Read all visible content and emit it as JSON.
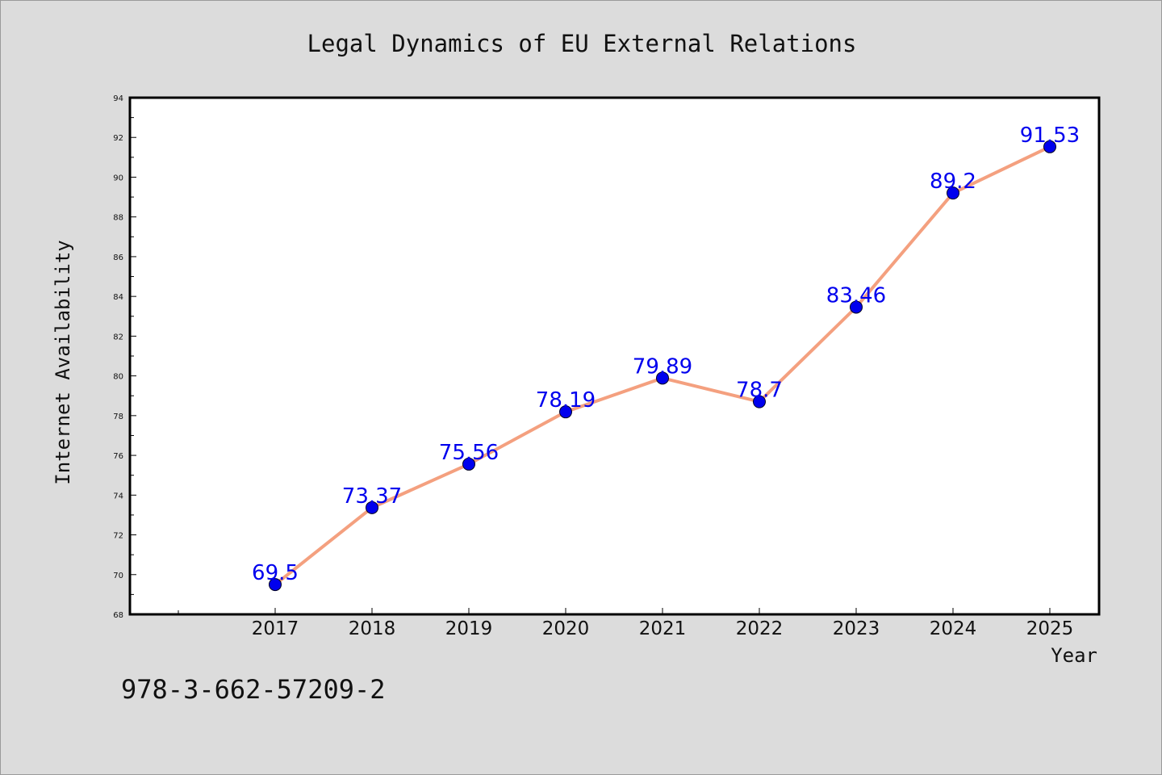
{
  "chart_data": {
    "type": "line",
    "title": "Legal Dynamics of EU External Relations",
    "xlabel": "Year",
    "ylabel": "Internet Availability",
    "categories": [
      "2017",
      "2018",
      "2019",
      "2020",
      "2021",
      "2022",
      "2023",
      "2024",
      "2025"
    ],
    "series": [
      {
        "values": [
          69.5,
          73.37,
          75.56,
          78.19,
          79.89,
          78.7,
          83.46,
          89.2,
          91.53
        ],
        "labels": [
          "69.5",
          "73.37",
          "75.56",
          "78.19",
          "79.89",
          "78.7",
          "83.46",
          "89.2",
          "91.53"
        ],
        "line_color": "#f4a07f",
        "marker_color": "#0000ee"
      }
    ],
    "ylim": [
      68,
      94
    ],
    "yticks": [
      "68",
      "70",
      "72",
      "74",
      "76",
      "78",
      "80",
      "82",
      "84",
      "86",
      "88",
      "90",
      "92",
      "94"
    ],
    "grid": false,
    "legend": "none"
  },
  "footer": {
    "isbn": "978-3-662-57209-2"
  },
  "colors": {
    "background": "#dcdcdc",
    "plot_background": "#ffffff",
    "axis": "#000000"
  }
}
